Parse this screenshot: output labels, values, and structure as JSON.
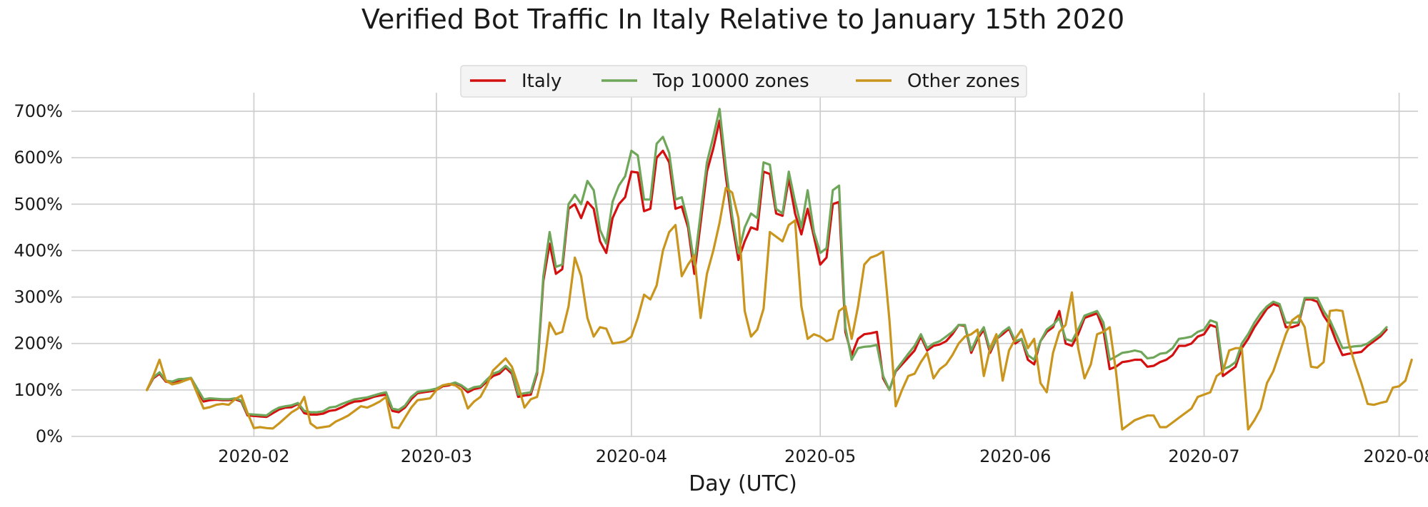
{
  "chart_data": {
    "type": "line",
    "title": "Verified Bot Traffic In Italy Relative to January 15th 2020",
    "xlabel": "Day (UTC)",
    "ylabel": "",
    "ylim": [
      0,
      740
    ],
    "xlim": [
      "2020-01-03",
      "2020-08-04"
    ],
    "y_unit": "%",
    "yticks": [
      0,
      100,
      200,
      300,
      400,
      500,
      600,
      700
    ],
    "ytick_labels": [
      "0%",
      "100%",
      "200%",
      "300%",
      "400%",
      "500%",
      "600%",
      "700%"
    ],
    "xticks": [
      "2020-02-01",
      "2020-03-01",
      "2020-04-01",
      "2020-05-01",
      "2020-06-01",
      "2020-07-01",
      "2020-08-01"
    ],
    "xtick_labels": [
      "2020-02",
      "2020-03",
      "2020-04",
      "2020-05",
      "2020-06",
      "2020-07",
      "2020-08"
    ],
    "grid": true,
    "legend_position": "top-center",
    "x_start": "2020-01-15",
    "series": [
      {
        "name": "Italy",
        "color": "#d40f0f",
        "values": [
          100,
          125,
          135,
          118,
          115,
          120,
          122,
          125,
          100,
          75,
          78,
          79,
          78,
          78,
          80,
          75,
          45,
          44,
          43,
          42,
          50,
          58,
          62,
          63,
          70,
          50,
          47,
          47,
          49,
          55,
          57,
          63,
          70,
          75,
          76,
          80,
          85,
          88,
          90,
          55,
          52,
          62,
          80,
          93,
          95,
          97,
          100,
          108,
          110,
          115,
          108,
          95,
          102,
          105,
          118,
          130,
          135,
          148,
          135,
          85,
          88,
          90,
          135,
          335,
          415,
          350,
          360,
          490,
          500,
          470,
          505,
          490,
          420,
          395,
          470,
          500,
          515,
          570,
          568,
          485,
          490,
          600,
          615,
          590,
          490,
          495,
          450,
          350,
          460,
          570,
          620,
          680,
          560,
          460,
          380,
          420,
          450,
          445,
          570,
          565,
          480,
          475,
          555,
          480,
          435,
          490,
          430,
          370,
          385,
          500,
          505,
          225,
          175,
          210,
          220,
          222,
          225,
          125,
          100,
          140,
          155,
          170,
          185,
          215,
          185,
          195,
          198,
          205,
          220,
          240,
          238,
          180,
          210,
          230,
          180,
          210,
          220,
          232,
          200,
          210,
          165,
          155,
          205,
          225,
          235,
          270,
          200,
          195,
          220,
          255,
          260,
          265,
          230,
          145,
          150,
          160,
          162,
          165,
          165,
          150,
          152,
          160,
          165,
          175,
          195,
          195,
          200,
          215,
          220,
          240,
          235,
          130,
          140,
          150,
          190,
          210,
          235,
          255,
          275,
          285,
          280,
          235,
          235,
          240,
          295,
          295,
          290,
          260,
          240,
          205,
          175,
          178,
          180,
          182,
          195,
          205,
          215,
          230
        ]
      },
      {
        "name": "Top 10000 zones",
        "color": "#6fa75a",
        "values": [
          100,
          127,
          138,
          120,
          118,
          123,
          124,
          126,
          103,
          80,
          82,
          81,
          80,
          80,
          82,
          77,
          48,
          47,
          46,
          45,
          55,
          62,
          65,
          67,
          72,
          55,
          52,
          52,
          54,
          62,
          64,
          70,
          75,
          80,
          82,
          84,
          88,
          92,
          95,
          60,
          57,
          66,
          85,
          96,
          98,
          100,
          103,
          110,
          112,
          116,
          110,
          100,
          106,
          108,
          122,
          135,
          140,
          152,
          140,
          90,
          93,
          95,
          140,
          345,
          440,
          365,
          370,
          500,
          520,
          500,
          550,
          530,
          445,
          415,
          505,
          540,
          560,
          615,
          605,
          510,
          510,
          630,
          645,
          610,
          510,
          515,
          460,
          370,
          480,
          590,
          645,
          705,
          580,
          475,
          395,
          450,
          480,
          470,
          590,
          585,
          490,
          480,
          570,
          505,
          450,
          530,
          440,
          395,
          405,
          530,
          540,
          235,
          165,
          190,
          193,
          194,
          197,
          130,
          100,
          142,
          160,
          178,
          195,
          220,
          190,
          200,
          205,
          215,
          225,
          240,
          240,
          185,
          215,
          235,
          185,
          210,
          225,
          235,
          205,
          210,
          175,
          165,
          205,
          230,
          240,
          255,
          210,
          205,
          230,
          260,
          265,
          270,
          245,
          165,
          172,
          180,
          182,
          185,
          182,
          168,
          170,
          178,
          180,
          190,
          210,
          212,
          215,
          225,
          230,
          250,
          245,
          145,
          150,
          160,
          200,
          220,
          245,
          265,
          280,
          290,
          285,
          245,
          245,
          245,
          298,
          298,
          298,
          270,
          250,
          220,
          190,
          192,
          194,
          195,
          200,
          210,
          220,
          235
        ]
      },
      {
        "name": "Other zones",
        "color": "#c9951c",
        "values": [
          100,
          130,
          165,
          120,
          112,
          115,
          120,
          125,
          92,
          60,
          63,
          68,
          70,
          68,
          80,
          88,
          50,
          18,
          20,
          18,
          17,
          28,
          40,
          52,
          60,
          85,
          28,
          18,
          20,
          22,
          32,
          38,
          45,
          55,
          65,
          62,
          68,
          75,
          85,
          20,
          18,
          40,
          62,
          78,
          80,
          82,
          100,
          110,
          113,
          110,
          100,
          60,
          75,
          85,
          110,
          142,
          155,
          168,
          150,
          110,
          62,
          80,
          85,
          140,
          245,
          220,
          225,
          280,
          385,
          345,
          255,
          215,
          235,
          232,
          200,
          202,
          205,
          215,
          255,
          305,
          295,
          325,
          400,
          440,
          455,
          345,
          370,
          390,
          255,
          350,
          400,
          460,
          535,
          525,
          470,
          270,
          215,
          230,
          275,
          440,
          430,
          420,
          455,
          465,
          280,
          210,
          220,
          215,
          205,
          210,
          270,
          280,
          210,
          280,
          370,
          385,
          390,
          398,
          250,
          65,
          100,
          130,
          135,
          160,
          180,
          125,
          145,
          155,
          175,
          200,
          215,
          220,
          230,
          130,
          190,
          220,
          120,
          185,
          210,
          230,
          190,
          210,
          115,
          95,
          180,
          225,
          240,
          310,
          190,
          125,
          155,
          220,
          225,
          235,
          140,
          15,
          25,
          35,
          40,
          45,
          45,
          20,
          20,
          30,
          40,
          50,
          60,
          85,
          90,
          95,
          130,
          140,
          185,
          190,
          190,
          15,
          35,
          60,
          115,
          140,
          180,
          220,
          250,
          260,
          235,
          150,
          148,
          160,
          270,
          272,
          270,
          200,
          155,
          115,
          70,
          68,
          72,
          75,
          105,
          108,
          120,
          165
        ]
      }
    ]
  }
}
